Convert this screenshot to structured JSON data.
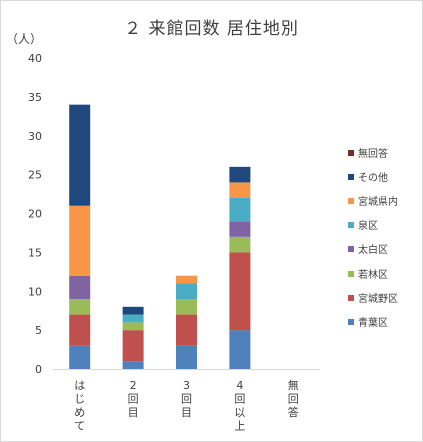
{
  "chart_data": {
    "type": "bar",
    "stacked": true,
    "title": "２ 来館回数 居住地別",
    "ylabel": "（人）",
    "ylim": [
      0,
      40
    ],
    "yticks": [
      0,
      5,
      10,
      15,
      20,
      25,
      30,
      35,
      40
    ],
    "grid": false,
    "legend_position": "right",
    "categories": [
      "はじめて",
      "2回目",
      "3回目",
      "4回以上",
      "無回答"
    ],
    "series": [
      {
        "name": "青葉区",
        "color": "#4f81bd",
        "values": [
          3,
          1,
          3,
          5,
          0
        ]
      },
      {
        "name": "宮城野区",
        "color": "#c0504d",
        "values": [
          4,
          4,
          4,
          10,
          0
        ]
      },
      {
        "name": "若林区",
        "color": "#9bbb59",
        "values": [
          2,
          1,
          2,
          2,
          0
        ]
      },
      {
        "name": "太白区",
        "color": "#8064a2",
        "values": [
          3,
          0,
          0,
          2,
          0
        ]
      },
      {
        "name": "泉区",
        "color": "#4bacc6",
        "values": [
          0,
          1,
          2,
          3,
          0
        ]
      },
      {
        "name": "宮城県内",
        "color": "#f79646",
        "values": [
          9,
          0,
          1,
          2,
          0
        ]
      },
      {
        "name": "その他",
        "color": "#1f497d",
        "values": [
          13,
          1,
          0,
          2,
          0
        ]
      },
      {
        "name": "無回答",
        "color": "#772c2a",
        "values": [
          0,
          0,
          0,
          0,
          0
        ]
      }
    ]
  }
}
